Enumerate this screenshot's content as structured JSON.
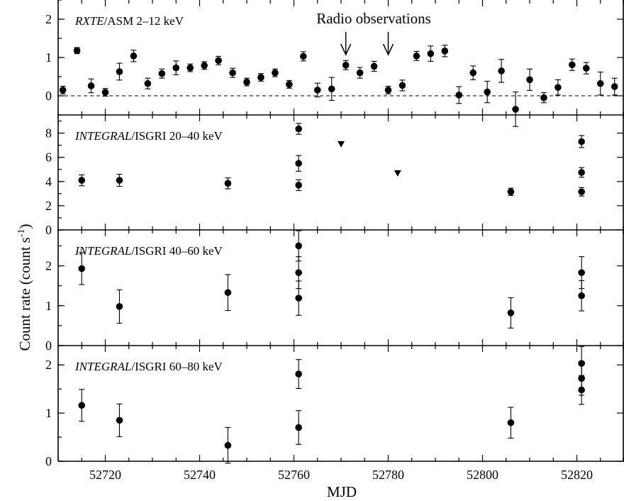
{
  "chart_data": {
    "type": "scatter",
    "ylabel": "Count rate (count s⁻¹)",
    "xlabel": "MJD",
    "xlim": [
      52710,
      52830
    ],
    "x_ticks": [
      52720,
      52740,
      52760,
      52780,
      52800,
      52820
    ],
    "panels": [
      {
        "id": "asm",
        "label_italic": "RXTE",
        "label_rest": "/ASM  2–12 keV",
        "ylim": [
          -0.5,
          2.5
        ],
        "y_ticks": [
          0,
          1,
          2
        ],
        "zero_line": "dashed",
        "annotation": {
          "text": "Radio observations",
          "arrow_x": [
            52771,
            52780
          ]
        },
        "points": [
          {
            "x": 52711,
            "y": 0.15,
            "e": 0.1
          },
          {
            "x": 52714,
            "y": 1.18,
            "e": 0.08
          },
          {
            "x": 52717,
            "y": 0.26,
            "e": 0.18
          },
          {
            "x": 52720,
            "y": 0.09,
            "e": 0.1
          },
          {
            "x": 52723,
            "y": 0.63,
            "e": 0.22
          },
          {
            "x": 52726,
            "y": 1.04,
            "e": 0.15
          },
          {
            "x": 52729,
            "y": 0.32,
            "e": 0.14
          },
          {
            "x": 52732,
            "y": 0.58,
            "e": 0.12
          },
          {
            "x": 52735,
            "y": 0.73,
            "e": 0.18
          },
          {
            "x": 52738,
            "y": 0.73,
            "e": 0.1
          },
          {
            "x": 52741,
            "y": 0.79,
            "e": 0.1
          },
          {
            "x": 52744,
            "y": 0.92,
            "e": 0.11
          },
          {
            "x": 52747,
            "y": 0.6,
            "e": 0.12
          },
          {
            "x": 52750,
            "y": 0.36,
            "e": 0.1
          },
          {
            "x": 52753,
            "y": 0.48,
            "e": 0.1
          },
          {
            "x": 52756,
            "y": 0.6,
            "e": 0.1
          },
          {
            "x": 52759,
            "y": 0.3,
            "e": 0.1
          },
          {
            "x": 52762,
            "y": 1.03,
            "e": 0.12
          },
          {
            "x": 52765,
            "y": 0.15,
            "e": 0.18
          },
          {
            "x": 52768,
            "y": 0.18,
            "e": 0.3
          },
          {
            "x": 52771,
            "y": 0.8,
            "e": 0.12
          },
          {
            "x": 52774,
            "y": 0.6,
            "e": 0.14
          },
          {
            "x": 52777,
            "y": 0.77,
            "e": 0.13
          },
          {
            "x": 52780,
            "y": 0.15,
            "e": 0.1
          },
          {
            "x": 52783,
            "y": 0.27,
            "e": 0.14
          },
          {
            "x": 52786,
            "y": 1.04,
            "e": 0.12
          },
          {
            "x": 52789,
            "y": 1.1,
            "e": 0.2
          },
          {
            "x": 52792,
            "y": 1.17,
            "e": 0.15
          },
          {
            "x": 52795,
            "y": 0.02,
            "e": 0.22
          },
          {
            "x": 52798,
            "y": 0.6,
            "e": 0.18
          },
          {
            "x": 52801,
            "y": 0.1,
            "e": 0.28
          },
          {
            "x": 52804,
            "y": 0.65,
            "e": 0.3
          },
          {
            "x": 52807,
            "y": -0.35,
            "e": 0.45
          },
          {
            "x": 52810,
            "y": 0.42,
            "e": 0.28
          },
          {
            "x": 52813,
            "y": -0.05,
            "e": 0.13
          },
          {
            "x": 52816,
            "y": 0.22,
            "e": 0.2
          },
          {
            "x": 52819,
            "y": 0.81,
            "e": 0.15
          },
          {
            "x": 52822,
            "y": 0.72,
            "e": 0.15
          },
          {
            "x": 52825,
            "y": 0.32,
            "e": 0.3
          },
          {
            "x": 52828,
            "y": 0.24,
            "e": 0.22
          }
        ]
      },
      {
        "id": "isgri-20-40",
        "label_italic": "INTEGRAL",
        "label_rest": "/ISGRI  20–40 keV",
        "ylim": [
          0,
          9.5
        ],
        "y_ticks": [
          0,
          2,
          4,
          6,
          8
        ],
        "points": [
          {
            "x": 52715,
            "y": 4.1,
            "e": 0.45
          },
          {
            "x": 52723,
            "y": 4.1,
            "e": 0.5
          },
          {
            "x": 52746,
            "y": 3.85,
            "e": 0.45
          },
          {
            "x": 52761,
            "y": 8.35,
            "e": 0.45
          },
          {
            "x": 52761,
            "y": 5.5,
            "e": 0.65
          },
          {
            "x": 52761,
            "y": 3.7,
            "e": 0.45
          },
          {
            "x": 52806,
            "y": 3.15,
            "e": 0.3
          },
          {
            "x": 52821,
            "y": 7.3,
            "e": 0.5
          },
          {
            "x": 52821,
            "y": 4.75,
            "e": 0.4
          },
          {
            "x": 52821,
            "y": 3.15,
            "e": 0.35
          }
        ],
        "upper_limits": [
          {
            "x": 52770,
            "y": 7.1
          },
          {
            "x": 52782,
            "y": 4.7
          }
        ]
      },
      {
        "id": "isgri-40-60",
        "label_italic": "INTEGRAL",
        "label_rest": "/ISGRI  40–60 keV",
        "ylim": [
          0,
          2.9
        ],
        "y_ticks": [
          0,
          1,
          2
        ],
        "points": [
          {
            "x": 52715,
            "y": 1.93,
            "e": 0.4
          },
          {
            "x": 52723,
            "y": 0.98,
            "e": 0.42
          },
          {
            "x": 52746,
            "y": 1.33,
            "e": 0.45
          },
          {
            "x": 52761,
            "y": 2.5,
            "e": 0.38
          },
          {
            "x": 52761,
            "y": 1.83,
            "e": 0.4
          },
          {
            "x": 52761,
            "y": 1.19,
            "e": 0.43
          },
          {
            "x": 52806,
            "y": 0.82,
            "e": 0.38
          },
          {
            "x": 52821,
            "y": 1.83,
            "e": 0.4
          },
          {
            "x": 52821,
            "y": 1.25,
            "e": 0.38
          }
        ]
      },
      {
        "id": "isgri-60-80",
        "label_italic": "INTEGRAL",
        "label_rest": "/ISGRI  60–80 keV",
        "ylim": [
          0,
          2.4
        ],
        "y_ticks": [
          0,
          1,
          2
        ],
        "points": [
          {
            "x": 52715,
            "y": 1.16,
            "e": 0.33
          },
          {
            "x": 52723,
            "y": 0.85,
            "e": 0.34
          },
          {
            "x": 52746,
            "y": 0.33,
            "e": 0.37
          },
          {
            "x": 52761,
            "y": 1.81,
            "e": 0.3
          },
          {
            "x": 52761,
            "y": 0.7,
            "e": 0.35
          },
          {
            "x": 52806,
            "y": 0.8,
            "e": 0.32
          },
          {
            "x": 52821,
            "y": 2.03,
            "e": 0.35
          },
          {
            "x": 52821,
            "y": 1.72,
            "e": 0.35
          },
          {
            "x": 52821,
            "y": 1.48,
            "e": 0.3
          }
        ]
      }
    ]
  }
}
